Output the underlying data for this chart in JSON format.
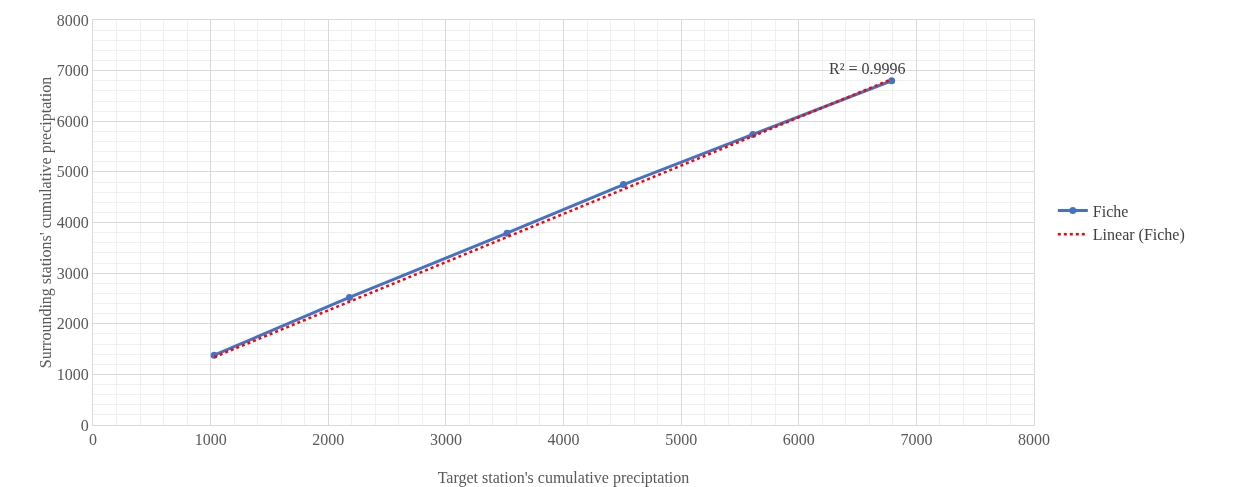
{
  "chart_data": {
    "type": "line",
    "xlabel": "Target station's cumulative preciptation",
    "ylabel": "Surrounding stations' cumulative preciptation",
    "xlim": [
      0,
      8000
    ],
    "xticks": [
      0,
      1000,
      2000,
      3000,
      4000,
      5000,
      6000,
      7000,
      8000
    ],
    "ylim": [
      0,
      8000
    ],
    "yticks": [
      0,
      1000,
      2000,
      3000,
      4000,
      5000,
      6000,
      7000,
      8000
    ],
    "grid": true,
    "legend": "right",
    "marker": "circle",
    "series": [
      {
        "name": "Fiche",
        "color": "#4472c4",
        "x": [
          1030,
          2180,
          3520,
          4510,
          5610,
          6790
        ],
        "values": [
          1380,
          2520,
          3790,
          4750,
          5740,
          6800
        ],
        "line_style": "solid"
      },
      {
        "name": "Linear (Fiche)",
        "color": "#ff0000",
        "type": "line",
        "x": [
          1030,
          6790
        ],
        "values": [
          1340,
          6830
        ],
        "line_style": "dotted",
        "marker": "none"
      }
    ],
    "annotations": [
      "R² = 0.9996"
    ]
  }
}
